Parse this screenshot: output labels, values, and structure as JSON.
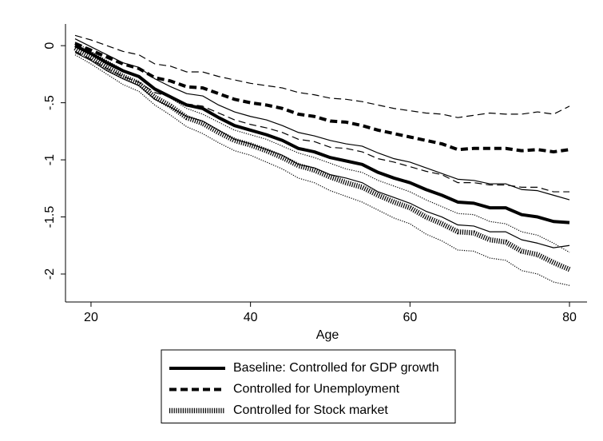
{
  "chart_data": {
    "type": "line",
    "x_label": "Age",
    "x": [
      18,
      20,
      22,
      24,
      26,
      28,
      30,
      32,
      34,
      36,
      38,
      40,
      42,
      44,
      46,
      48,
      50,
      52,
      54,
      56,
      58,
      60,
      62,
      64,
      66,
      68,
      70,
      72,
      74,
      76,
      78,
      80
    ],
    "xlim": [
      16.8,
      82.2
    ],
    "xticks": [
      20,
      40,
      60,
      80
    ],
    "ylim": [
      -2.245,
      0.19
    ],
    "yticks": [
      0,
      {
        "value": -0.5,
        "label": "-.5"
      },
      -1,
      -1.5,
      -2
    ],
    "series": [
      {
        "name": "Baseline: Controlled for GDP growth",
        "color": "#000000",
        "dash": "solid",
        "weight": "thick",
        "values": [
          0,
          -0.07,
          -0.15,
          -0.22,
          -0.27,
          -0.38,
          -0.45,
          -0.52,
          -0.55,
          -0.63,
          -0.7,
          -0.74,
          -0.78,
          -0.83,
          -0.9,
          -0.93,
          -0.98,
          -1.01,
          -1.04,
          -1.11,
          -1.16,
          -1.2,
          -1.26,
          -1.31,
          -1.37,
          -1.38,
          -1.42,
          -1.42,
          -1.48,
          -1.5,
          -1.54,
          -1.55
        ]
      },
      {
        "color": "#000000",
        "dash": "solid",
        "weight": "thin",
        "values": [
          0.06,
          -0.01,
          -0.08,
          -0.15,
          -0.19,
          -0.29,
          -0.36,
          -0.42,
          -0.44,
          -0.52,
          -0.58,
          -0.62,
          -0.65,
          -0.7,
          -0.76,
          -0.79,
          -0.83,
          -0.86,
          -0.88,
          -0.94,
          -0.99,
          -1.02,
          -1.07,
          -1.12,
          -1.17,
          -1.18,
          -1.21,
          -1.21,
          -1.26,
          -1.27,
          -1.31,
          -1.35
        ]
      },
      {
        "color": "#000000",
        "dash": "solid",
        "weight": "thin",
        "values": [
          -0.06,
          -0.13,
          -0.22,
          -0.29,
          -0.35,
          -0.47,
          -0.54,
          -0.62,
          -0.66,
          -0.74,
          -0.82,
          -0.86,
          -0.91,
          -0.96,
          -1.04,
          -1.07,
          -1.13,
          -1.16,
          -1.2,
          -1.28,
          -1.33,
          -1.38,
          -1.45,
          -1.5,
          -1.57,
          -1.58,
          -1.63,
          -1.63,
          -1.7,
          -1.73,
          -1.77,
          -1.75
        ]
      },
      {
        "name": "Controlled for Unemployment",
        "color": "#000000",
        "dash": "dashed",
        "weight": "thick",
        "values": [
          0.02,
          -0.04,
          -0.1,
          -0.16,
          -0.2,
          -0.28,
          -0.31,
          -0.36,
          -0.37,
          -0.42,
          -0.47,
          -0.5,
          -0.52,
          -0.55,
          -0.6,
          -0.62,
          -0.66,
          -0.67,
          -0.7,
          -0.74,
          -0.77,
          -0.8,
          -0.83,
          -0.86,
          -0.91,
          -0.9,
          -0.9,
          -0.9,
          -0.92,
          -0.91,
          -0.93,
          -0.91
        ]
      },
      {
        "color": "#000000",
        "dash": "dashed",
        "weight": "thin",
        "values": [
          0.09,
          0.05,
          0,
          -0.05,
          -0.08,
          -0.16,
          -0.18,
          -0.23,
          -0.23,
          -0.27,
          -0.3,
          -0.33,
          -0.35,
          -0.37,
          -0.41,
          -0.43,
          -0.46,
          -0.47,
          -0.49,
          -0.52,
          -0.55,
          -0.57,
          -0.59,
          -0.6,
          -0.63,
          -0.61,
          -0.59,
          -0.6,
          -0.6,
          -0.58,
          -0.6,
          -0.53
        ]
      },
      {
        "color": "#000000",
        "dash": "dashed",
        "weight": "thin",
        "values": [
          -0.05,
          -0.12,
          -0.2,
          -0.27,
          -0.32,
          -0.41,
          -0.45,
          -0.51,
          -0.53,
          -0.59,
          -0.65,
          -0.69,
          -0.72,
          -0.76,
          -0.82,
          -0.84,
          -0.89,
          -0.9,
          -0.93,
          -0.99,
          -1.02,
          -1.06,
          -1.1,
          -1.13,
          -1.2,
          -1.2,
          -1.22,
          -1.22,
          -1.24,
          -1.24,
          -1.28,
          -1.28
        ]
      },
      {
        "name": "Controlled for Stock market",
        "color": "#000000",
        "dash": "dotted",
        "weight": "thick",
        "values": [
          -0.02,
          -0.1,
          -0.19,
          -0.27,
          -0.33,
          -0.45,
          -0.53,
          -0.63,
          -0.68,
          -0.76,
          -0.83,
          -0.87,
          -0.92,
          -0.98,
          -1.05,
          -1.09,
          -1.15,
          -1.2,
          -1.24,
          -1.31,
          -1.37,
          -1.42,
          -1.5,
          -1.56,
          -1.63,
          -1.64,
          -1.7,
          -1.72,
          -1.8,
          -1.83,
          -1.9,
          -1.96
        ]
      },
      {
        "color": "#000000",
        "dash": "dotted",
        "weight": "thin",
        "values": [
          0.03,
          -0.05,
          -0.13,
          -0.21,
          -0.27,
          -0.38,
          -0.46,
          -0.55,
          -0.6,
          -0.67,
          -0.74,
          -0.78,
          -0.82,
          -0.88,
          -0.94,
          -0.98,
          -1.03,
          -1.08,
          -1.11,
          -1.18,
          -1.23,
          -1.28,
          -1.35,
          -1.41,
          -1.47,
          -1.48,
          -1.54,
          -1.56,
          -1.63,
          -1.66,
          -1.73,
          -1.81
        ]
      },
      {
        "color": "#000000",
        "dash": "dotted",
        "weight": "thin",
        "values": [
          -0.08,
          -0.16,
          -0.25,
          -0.34,
          -0.4,
          -0.52,
          -0.61,
          -0.71,
          -0.77,
          -0.85,
          -0.92,
          -0.96,
          -1.02,
          -1.08,
          -1.16,
          -1.2,
          -1.27,
          -1.32,
          -1.37,
          -1.44,
          -1.51,
          -1.56,
          -1.65,
          -1.71,
          -1.79,
          -1.8,
          -1.86,
          -1.88,
          -1.97,
          -2.0,
          -2.07,
          -2.1
        ]
      }
    ]
  }
}
